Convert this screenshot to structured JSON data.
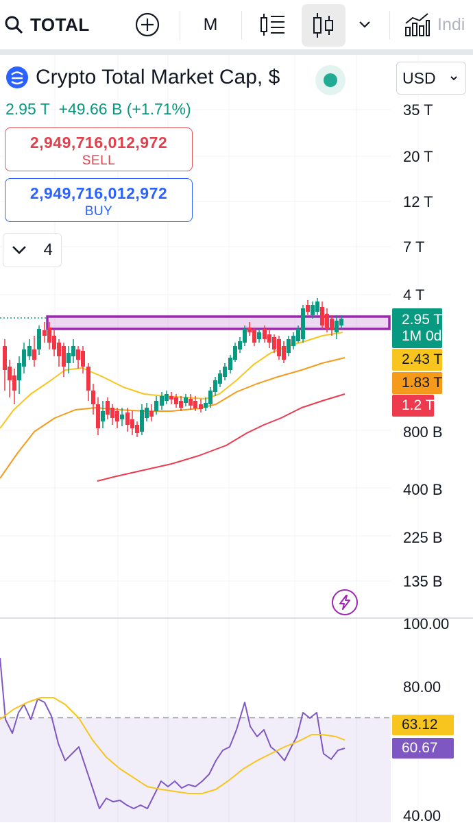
{
  "toolbar": {
    "symbol": "TOTAL",
    "interval": "M",
    "indicators_label": "Indi"
  },
  "header": {
    "title": "Crypto Total Market Cap, $",
    "currency": "USD",
    "last_value": "2.95 T",
    "change": "+49.66 B",
    "change_pct": "(+1.71%)"
  },
  "trade": {
    "sell_price": "2,949,716,012,972",
    "sell_label": "SELL",
    "buy_price": "2,949,716,012,972",
    "buy_label": "BUY"
  },
  "indicators_count": "4",
  "price_axis": [
    "35 T",
    "20 T",
    "12 T",
    "7 T",
    "4 T",
    "800 B",
    "400 B",
    "225 B",
    "135 B"
  ],
  "price_tags": {
    "last": "2.95 T",
    "countdown": "1M 0d",
    "ma_fast": "2.43 T",
    "ma_mid": "1.83 T",
    "ma_slow": "1.2 T"
  },
  "rsi": {
    "axis": [
      "100.00",
      "80.00",
      "40.00"
    ],
    "rsi_ma_value": "63.12",
    "rsi_value": "60.67",
    "upper_band": 70,
    "lower_band": 30
  },
  "colors": {
    "up": "#089981",
    "down": "#f23645",
    "ma_fast": "#f7c51e",
    "ma_mid": "#f59a1b",
    "ma_slow": "#ee3a4f",
    "rsi": "#7e57c2",
    "zone": "#9c27b0"
  },
  "icons": [
    "search-icon",
    "add-compare-icon",
    "bar-style-icon",
    "candle-style-icon",
    "chevron-down-icon",
    "indicators-icon",
    "lightning-icon"
  ]
}
